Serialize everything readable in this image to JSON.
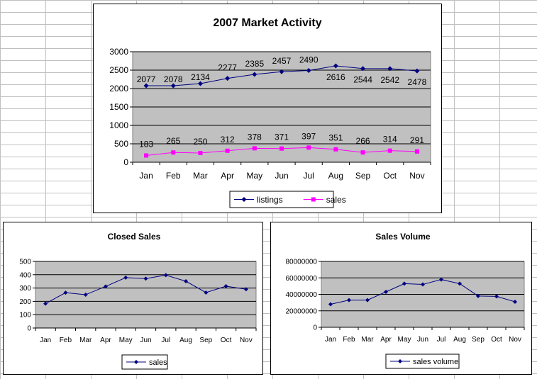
{
  "chart_data": [
    {
      "type": "line",
      "title": "2007 Market Activity",
      "categories": [
        "Jan",
        "Feb",
        "Mar",
        "Apr",
        "May",
        "Jun",
        "Jul",
        "Aug",
        "Sep",
        "Oct",
        "Nov"
      ],
      "series": [
        {
          "name": "listings",
          "values": [
            2077,
            2078,
            2134,
            2277,
            2385,
            2457,
            2490,
            2616,
            2544,
            2542,
            2478
          ],
          "color": "#000080",
          "marker": "diamond"
        },
        {
          "name": "sales",
          "values": [
            183,
            265,
            250,
            312,
            378,
            371,
            397,
            351,
            266,
            314,
            291
          ],
          "color": "#ff00ff",
          "marker": "square"
        }
      ],
      "ylim": [
        0,
        3000
      ],
      "yticks": [
        "0",
        "500",
        "1000",
        "1500",
        "2000",
        "2500",
        "3000"
      ],
      "data_labels": true,
      "plot_background": "#c0c0c0",
      "grid": true,
      "legend": "bottom"
    },
    {
      "type": "line",
      "title": "Closed Sales",
      "categories": [
        "Jan",
        "Feb",
        "Mar",
        "Apr",
        "May",
        "Jun",
        "Jul",
        "Aug",
        "Sep",
        "Oct",
        "Nov"
      ],
      "series": [
        {
          "name": "sales",
          "values": [
            183,
            265,
            250,
            312,
            378,
            371,
            397,
            351,
            266,
            314,
            291
          ],
          "color": "#000080",
          "marker": "diamond"
        }
      ],
      "ylim": [
        0,
        500
      ],
      "yticks": [
        "0",
        "100",
        "200",
        "300",
        "400",
        "500"
      ],
      "data_labels": false,
      "plot_background": "#c0c0c0",
      "grid": true,
      "legend": "bottom"
    },
    {
      "type": "line",
      "title": "Sales Volume",
      "categories": [
        "Jan",
        "Feb",
        "Mar",
        "Apr",
        "May",
        "Jun",
        "Jul",
        "Aug",
        "Sep",
        "Oct",
        "Nov"
      ],
      "series": [
        {
          "name": "sales volume",
          "values": [
            28000000,
            33000000,
            33000000,
            43000000,
            53000000,
            52000000,
            58000000,
            53000000,
            38000000,
            37500000,
            31000000
          ],
          "color": "#000080",
          "marker": "diamond"
        }
      ],
      "ylim": [
        0,
        80000000
      ],
      "yticks": [
        "0",
        "20000000",
        "40000000",
        "60000000",
        "80000000"
      ],
      "data_labels": false,
      "plot_background": "#c0c0c0",
      "grid": true,
      "legend": "bottom"
    }
  ]
}
